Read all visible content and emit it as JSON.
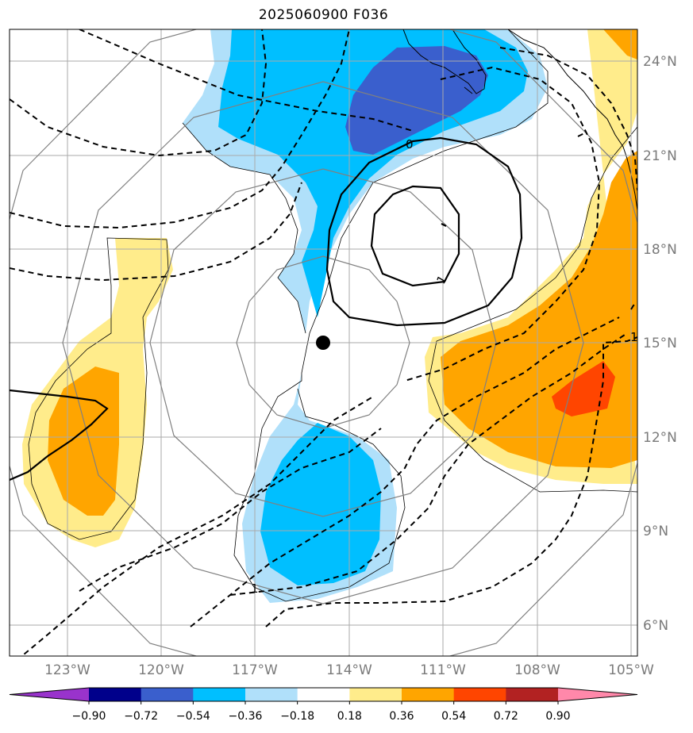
{
  "title": "2025060900 F036",
  "latitude_labels": [
    "24°N",
    "21°N",
    "18°N",
    "15°N",
    "12°N",
    "9°N",
    "6°N"
  ],
  "longitude_labels": [
    "123°W",
    "120°W",
    "117°W",
    "114°W",
    "111°W",
    "108°W",
    "105°W"
  ],
  "contour_labels": [
    "0",
    "1",
    "1",
    "1"
  ],
  "colorbar": {
    "tick_labels": [
      "−0.90",
      "−0.72",
      "−0.54",
      "−0.36",
      "−0.18",
      "0.18",
      "0.36",
      "0.54",
      "0.72",
      "0.90"
    ],
    "colors": [
      "#9933cc",
      "#00008b",
      "#3a5fcd",
      "#00bfff",
      "#b0e0fa",
      "#ffffff",
      "#ffec8b",
      "#ffa500",
      "#ff4500",
      "#b22222",
      "#ff88aa"
    ]
  },
  "colors": {
    "strong_negative": "#3a5fcd",
    "negative": "#00bfff",
    "weak_negative": "#b0e0fa",
    "weak_positive": "#ffec8b",
    "positive": "#ffa500",
    "strong_positive": "#ff4500",
    "gridline": "#aaaaaa",
    "range_ring": "#808080"
  },
  "center_marker": {
    "lat": 15.0,
    "lon": -114.8
  }
}
